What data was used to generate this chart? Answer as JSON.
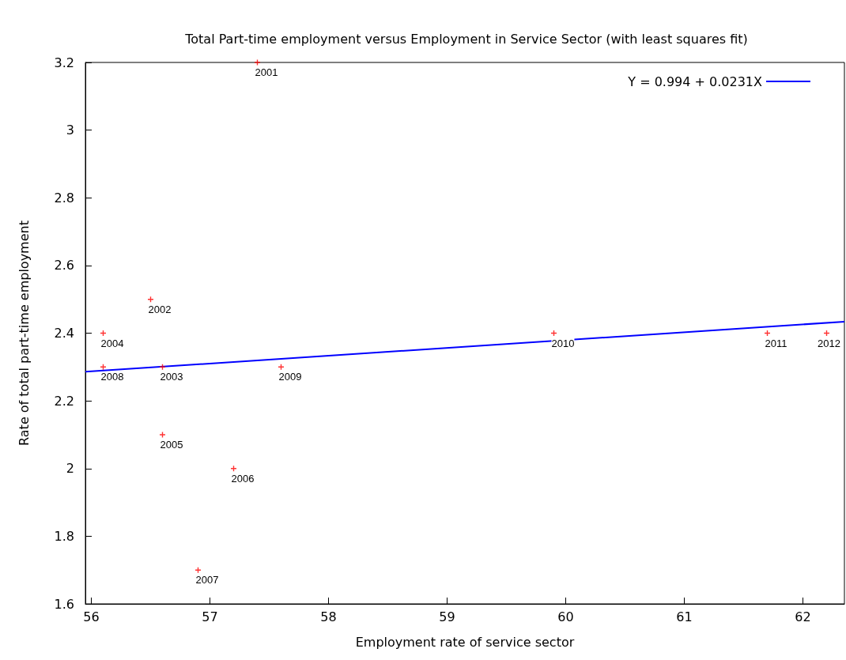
{
  "chart_data": {
    "type": "scatter",
    "title": "Total Part-time employment versus Employment in Service Sector (with least squares fit)",
    "xlabel": "Employment rate of service sector",
    "ylabel": "Rate of total part-time employment",
    "xlim": [
      55.95,
      62.35
    ],
    "ylim": [
      1.6,
      3.2
    ],
    "xticks": [
      56,
      57,
      58,
      59,
      60,
      61,
      62
    ],
    "yticks": [
      1.6,
      1.8,
      2,
      2.2,
      2.4,
      2.6,
      2.8,
      3,
      3.2
    ],
    "grid": false,
    "legend": "top right",
    "marker": "cross",
    "series": [
      {
        "color": "#ff0000",
        "x": [
          57.4,
          56.5,
          56.6,
          56.1,
          56.6,
          57.2,
          56.9,
          56.1,
          57.6,
          59.9,
          61.7,
          62.2
        ],
        "values": [
          3.2,
          2.5,
          2.3,
          2.4,
          2.1,
          2.0,
          1.7,
          2.3,
          2.3,
          2.4,
          2.4,
          2.4
        ]
      },
      {
        "type": "line",
        "name": "Y = 0.994 + 0.0231X",
        "color": "#0000ff",
        "marker": "none",
        "x": [
          55.95,
          62.35
        ],
        "values": [
          2.286,
          2.434
        ]
      }
    ],
    "annotations": [
      {
        "text": "2001",
        "x": 57.4,
        "y": 3.2
      },
      {
        "text": "2002",
        "x": 56.5,
        "y": 2.5
      },
      {
        "text": "2003",
        "x": 56.6,
        "y": 2.3
      },
      {
        "text": "2004",
        "x": 56.1,
        "y": 2.4
      },
      {
        "text": "2005",
        "x": 56.6,
        "y": 2.1
      },
      {
        "text": "2006",
        "x": 57.2,
        "y": 2.0
      },
      {
        "text": "2007",
        "x": 56.9,
        "y": 1.7
      },
      {
        "text": "2008",
        "x": 56.1,
        "y": 2.3
      },
      {
        "text": "2009",
        "x": 57.6,
        "y": 2.3
      },
      {
        "text": "2010",
        "x": 59.9,
        "y": 2.4
      },
      {
        "text": "2011",
        "x": 61.7,
        "y": 2.4
      },
      {
        "text": "2012",
        "x": 62.2,
        "y": 2.4
      }
    ]
  }
}
